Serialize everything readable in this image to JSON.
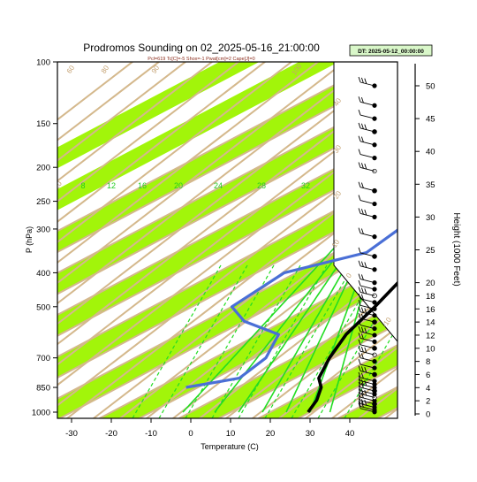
{
  "title": "Prodromos Sounding on 02_2025-05-16_21:00:00",
  "subtitle": "Pcl=619 Tc[C]=-5 Shox=-1 Pwat[cm]=2 Cape[J]=0",
  "dt_label": "DT: 2025-05-12_00:00:00",
  "chart_data": {
    "type": "line",
    "title": "Prodromos Sounding on 02_2025-05-16_21:00:00",
    "xlabel": "Temperature (C)",
    "ylabel": "P (hPa)",
    "y2label": "Height (1000 Feet)",
    "x_ticks": [
      -30,
      -20,
      -10,
      0,
      10,
      20,
      30,
      40
    ],
    "y_ticks": [
      100,
      150,
      200,
      250,
      300,
      400,
      500,
      700,
      850,
      1000
    ],
    "y_scale": "log",
    "y2_ticks": [
      0,
      2,
      4,
      6,
      8,
      10,
      12,
      14,
      16,
      18,
      20,
      25,
      30,
      35,
      40,
      45,
      50
    ],
    "mixing_ratio_labels": [
      "8",
      "12",
      "16",
      "20",
      "24",
      "28",
      "32"
    ],
    "dry_adiabat_labels": [
      "60",
      "80",
      "90",
      "100",
      "40",
      "30",
      "20",
      "10",
      "0",
      "-10",
      "-20"
    ],
    "moist_adiabat_labels": [
      "50",
      "30",
      "20",
      "10",
      "0",
      "-10",
      "-20"
    ],
    "series": [
      {
        "color": "#000000",
        "points": [
          {
            "p": 1000,
            "t": 29.5
          },
          {
            "p": 925,
            "t": 26
          },
          {
            "p": 850,
            "t": 21
          },
          {
            "p": 800,
            "t": 16
          },
          {
            "p": 700,
            "t": 9
          },
          {
            "p": 600,
            "t": 2
          },
          {
            "p": 500,
            "t": -4
          },
          {
            "p": 400,
            "t": -12
          },
          {
            "p": 300,
            "t": -24
          },
          {
            "p": 250,
            "t": -32
          },
          {
            "p": 200,
            "t": -40
          },
          {
            "p": 150,
            "t": -45
          },
          {
            "p": 100,
            "t": -52
          }
        ]
      },
      {
        "color": "#4a6fd6",
        "points": [
          {
            "p": 850,
            "t": -13
          },
          {
            "p": 800,
            "t": -4
          },
          {
            "p": 700,
            "t": -7
          },
          {
            "p": 600,
            "t": -15
          },
          {
            "p": 550,
            "t": -30
          },
          {
            "p": 500,
            "t": -40
          },
          {
            "p": 400,
            "t": -43
          },
          {
            "p": 350,
            "t": -32
          },
          {
            "p": 300,
            "t": -35
          },
          {
            "p": 250,
            "t": -47
          },
          {
            "p": 200,
            "t": -54
          },
          {
            "p": 150,
            "t": -63
          },
          {
            "p": 125,
            "t": -66
          },
          {
            "p": 100,
            "t": -58
          }
        ]
      }
    ],
    "wind_barb_heights_kft": [
      0.3,
      0.6,
      1,
      1.5,
      2,
      2.5,
      3,
      3.5,
      4,
      4.5,
      5,
      6,
      7,
      8,
      9,
      10,
      11,
      12,
      13,
      14,
      15,
      16,
      17,
      18,
      19,
      20,
      22,
      24,
      27,
      30,
      32,
      34,
      37,
      39,
      41,
      43,
      45,
      47,
      50
    ]
  }
}
